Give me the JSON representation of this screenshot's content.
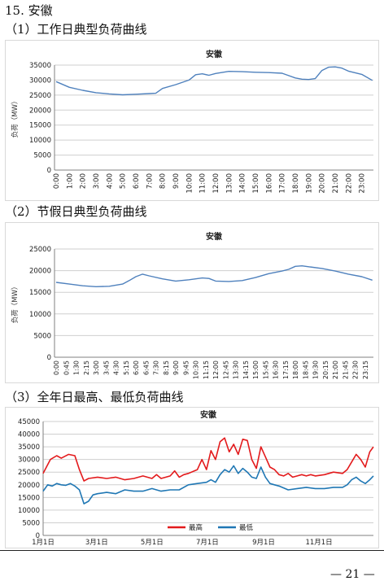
{
  "heading": "15. 安徽",
  "sections": [
    {
      "label": "（1）工作日典型负荷曲线"
    },
    {
      "label": "（2）节假日典型负荷曲线"
    },
    {
      "label": "（3）全年日最高、最低负荷曲线"
    }
  ],
  "page_number": "— 21 —",
  "chart_data": [
    {
      "type": "line",
      "title": "安徽",
      "ylabel": "负荷（MW）",
      "ylim": [
        0,
        35000
      ],
      "yticks": [
        0,
        5000,
        10000,
        15000,
        20000,
        25000,
        30000,
        35000
      ],
      "xticks": [
        "0:00",
        "1:00",
        "2:00",
        "3:00",
        "4:00",
        "5:00",
        "6:00",
        "7:00",
        "8:00",
        "9:00",
        "10:00",
        "11:00",
        "12:00",
        "13:00",
        "14:00",
        "15:00",
        "16:00",
        "17:00",
        "18:00",
        "19:00",
        "20:00",
        "21:00",
        "22:00",
        "23:00"
      ],
      "color": "#4f81bd",
      "series": [
        {
          "x": [
            0,
            1,
            2,
            3,
            4,
            5,
            6,
            7,
            7.5,
            8,
            9,
            10,
            10.5,
            11,
            11.5,
            12,
            13,
            14,
            15,
            16,
            17,
            17.5,
            18,
            18.5,
            19,
            19.5,
            20,
            20.5,
            21,
            21.5,
            22,
            23,
            23.8
          ],
          "values": [
            29500,
            27600,
            26600,
            25800,
            25400,
            25100,
            25300,
            25500,
            25600,
            27200,
            28500,
            30000,
            31800,
            32100,
            31600,
            32200,
            32900,
            32800,
            32600,
            32500,
            32300,
            31500,
            30700,
            30300,
            30200,
            30500,
            33200,
            34300,
            34400,
            34000,
            33000,
            31900,
            29900
          ]
        }
      ]
    },
    {
      "type": "line",
      "title": "安徽",
      "ylabel": "负荷（MW）",
      "ylim": [
        0,
        25000
      ],
      "yticks": [
        0,
        5000,
        10000,
        15000,
        20000,
        25000
      ],
      "xticks": [
        "0:00",
        "0:45",
        "1:30",
        "2:15",
        "3:00",
        "3:45",
        "4:30",
        "5:15",
        "6:00",
        "6:45",
        "7:30",
        "8:15",
        "9:00",
        "9:45",
        "10:30",
        "11:15",
        "12:00",
        "12:45",
        "13:30",
        "14:15",
        "15:00",
        "15:45",
        "16:30",
        "17:15",
        "18:00",
        "18:45",
        "19:30",
        "20:15",
        "21:00",
        "21:45",
        "22:30",
        "23:15"
      ],
      "color": "#4f81bd",
      "series": [
        {
          "x": [
            0,
            1,
            2,
            3,
            4,
            5,
            5.5,
            6,
            6.5,
            7,
            8,
            9,
            10,
            11,
            11.5,
            12,
            13,
            14,
            15,
            16,
            17,
            17.5,
            18,
            18.5,
            19,
            20,
            21,
            22,
            23,
            23.8
          ],
          "values": [
            17300,
            16900,
            16500,
            16300,
            16400,
            16900,
            17700,
            18600,
            19200,
            18800,
            18100,
            17600,
            17900,
            18300,
            18200,
            17600,
            17500,
            17700,
            18400,
            19300,
            19900,
            20300,
            21000,
            21100,
            20900,
            20500,
            19900,
            19200,
            18600,
            17800
          ]
        }
      ]
    },
    {
      "type": "line",
      "title": "安徽",
      "ylim": [
        0,
        45000
      ],
      "yticks": [
        0,
        5000,
        10000,
        15000,
        20000,
        25000,
        30000,
        35000,
        40000,
        45000
      ],
      "xticks": [
        "1月1日",
        "3月1日",
        "5月1日",
        "7月1日",
        "9月1日",
        "11月1日"
      ],
      "xtick_days": [
        0,
        59,
        120,
        181,
        243,
        304
      ],
      "xlim_days": [
        0,
        364
      ],
      "legend": "bottom-center",
      "series": [
        {
          "name": "最高",
          "color": "#e31a1c",
          "x": [
            0,
            8,
            15,
            20,
            28,
            35,
            40,
            45,
            50,
            60,
            70,
            80,
            90,
            100,
            110,
            120,
            125,
            130,
            140,
            145,
            150,
            155,
            160,
            170,
            175,
            180,
            185,
            190,
            195,
            200,
            205,
            210,
            215,
            220,
            225,
            230,
            235,
            240,
            245,
            250,
            255,
            260,
            265,
            270,
            275,
            280,
            285,
            290,
            295,
            300,
            310,
            320,
            330,
            335,
            340,
            345,
            350,
            355,
            360,
            364
          ],
          "values": [
            24500,
            30000,
            31500,
            30500,
            32000,
            31500,
            26000,
            21500,
            22500,
            23000,
            22500,
            23000,
            22000,
            22500,
            23500,
            22500,
            24000,
            22500,
            23500,
            25500,
            23000,
            24000,
            24500,
            26000,
            30000,
            26000,
            33500,
            30000,
            37000,
            38500,
            33000,
            36000,
            32000,
            38000,
            37500,
            30000,
            26500,
            35000,
            31000,
            27000,
            26000,
            24000,
            23500,
            24500,
            23000,
            23500,
            24000,
            23500,
            24000,
            23500,
            24000,
            25000,
            24500,
            26000,
            29000,
            32000,
            30000,
            27000,
            33000,
            35000
          ]
        },
        {
          "name": "最低",
          "color": "#1f77b4",
          "x": [
            0,
            5,
            10,
            15,
            20,
            25,
            30,
            35,
            40,
            45,
            50,
            55,
            60,
            70,
            80,
            90,
            100,
            110,
            120,
            130,
            140,
            150,
            160,
            170,
            180,
            185,
            190,
            195,
            200,
            205,
            210,
            215,
            220,
            225,
            230,
            235,
            240,
            245,
            250,
            255,
            260,
            270,
            280,
            290,
            300,
            310,
            320,
            330,
            335,
            340,
            345,
            350,
            355,
            360,
            364
          ],
          "values": [
            17500,
            20000,
            19500,
            20500,
            20000,
            19800,
            20500,
            19500,
            18000,
            12500,
            13500,
            16000,
            16500,
            17000,
            16500,
            18000,
            17500,
            17500,
            18500,
            17500,
            18000,
            18000,
            20000,
            20500,
            21000,
            22000,
            21000,
            24000,
            26000,
            25000,
            27500,
            24500,
            26500,
            25000,
            23000,
            22500,
            27000,
            23000,
            20500,
            20000,
            19500,
            18000,
            18500,
            19000,
            18500,
            18500,
            19000,
            19000,
            20000,
            22000,
            23000,
            21500,
            20500,
            22000,
            23500
          ]
        }
      ]
    }
  ]
}
